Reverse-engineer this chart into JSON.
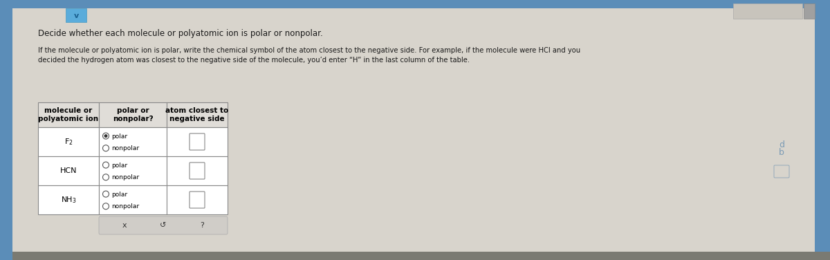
{
  "title1": "Decide whether each molecule or polyatomic ion is polar or nonpolar.",
  "title2": "If the molecule or polyatomic ion is polar, write the chemical symbol of the atom closest to the negative side. For example, if the molecule were HCl and you\ndecided the hydrogen atom was closest to the negative side of the molecule, you’d enter “H” in the last column of the table.",
  "col_headers": [
    "molecule or\npolyatomic ion",
    "polar or\nnonpolar?",
    "atom closest to\nnegative side"
  ],
  "molecules": [
    "F$_2$",
    "HCN",
    "NH$_3$"
  ],
  "radio_options": [
    "polar",
    "nonpolar"
  ],
  "row0_selected": 0,
  "button_bar": [
    "x",
    "↺",
    "?"
  ],
  "outer_bg": "#7a7a72",
  "left_bar_color": "#5b8db8",
  "top_bar_color": "#5b8db8",
  "content_bg": "#d8d4cc",
  "table_bg": "#ffffff",
  "header_bg": "#e0ddd8",
  "border_color": "#999999",
  "text_color": "#1a1a1a",
  "title_fontsize": 8.5,
  "cell_fontsize": 7.5,
  "header_fontsize": 7.5,
  "radio_fontsize": 6.5,
  "mol_fontsize": 8,
  "chevron_bg": "#5aacdb",
  "right_icon1_color": "#7a9ab5",
  "right_icon2_color": "#7a9ab5",
  "btn_bg": "#d0cdc8"
}
